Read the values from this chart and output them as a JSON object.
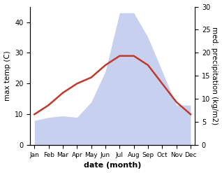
{
  "months": [
    "Jan",
    "Feb",
    "Mar",
    "Apr",
    "May",
    "Jun",
    "Jul",
    "Aug",
    "Sep",
    "Oct",
    "Nov",
    "Dec"
  ],
  "temp_max": [
    10,
    13,
    17,
    20,
    22,
    26,
    29,
    29,
    26,
    20,
    14,
    10
  ],
  "precipitation": [
    8,
    9,
    9.5,
    9,
    14,
    24,
    43,
    43,
    35,
    24,
    13,
    13
  ],
  "temp_color": "#c0392b",
  "precip_fill_color": "#c8d0f0",
  "xlabel": "date (month)",
  "ylabel_left": "max temp (C)",
  "ylabel_right": "med. precipitation (kg/m2)",
  "ylim_left": [
    0,
    45
  ],
  "ylim_right": [
    0,
    30
  ],
  "yticks_left": [
    0,
    10,
    20,
    30,
    40
  ],
  "yticks_right": [
    0,
    5,
    10,
    15,
    20,
    25,
    30
  ],
  "background_color": "#ffffff",
  "temp_linewidth": 1.8,
  "xlabel_fontsize": 8,
  "ylabel_fontsize": 7.5,
  "tick_fontsize": 7,
  "xtick_fontsize": 6.5
}
